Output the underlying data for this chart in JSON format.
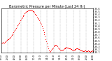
{
  "title": "Barometric Pressure per Minute (Last 24 Hr)",
  "bg_color": "#ffffff",
  "plot_bg_color": "#ffffff",
  "line_color": "#ff0000",
  "grid_color": "#aaaaaa",
  "title_color": "#000000",
  "tick_color": "#000000",
  "ylim": [
    29.1,
    30.6
  ],
  "yticks": [
    29.1,
    29.2,
    29.3,
    29.4,
    29.5,
    29.6,
    29.7,
    29.8,
    29.9,
    30.0,
    30.1,
    30.2,
    30.3,
    30.4,
    30.5,
    30.6
  ],
  "ytick_labels": [
    "29.1",
    "29.2",
    "29.3",
    "29.4",
    "29.5",
    "29.6",
    "29.7",
    "29.8",
    "29.9",
    "30.0",
    "30.1",
    "30.2",
    "30.3",
    "30.4",
    "30.5",
    "30.6"
  ],
  "x_data": [
    0,
    1,
    2,
    3,
    4,
    5,
    6,
    7,
    8,
    9,
    10,
    11,
    12,
    13,
    14,
    15,
    16,
    17,
    18,
    19,
    20,
    21,
    22,
    23,
    24,
    25,
    26,
    27,
    28,
    29,
    30,
    31,
    32,
    33,
    34,
    35,
    36,
    37,
    38,
    39,
    40,
    41,
    42,
    43,
    44,
    45,
    46,
    47,
    48,
    49,
    50,
    51,
    52,
    53,
    54,
    55,
    56,
    57,
    58,
    59,
    60,
    61,
    62,
    63,
    64,
    65,
    66,
    67,
    68,
    69,
    70,
    71,
    72,
    73,
    74,
    75,
    76,
    77,
    78,
    79,
    80,
    81,
    82,
    83,
    84,
    85,
    86,
    87,
    88,
    89,
    90,
    91,
    92,
    93,
    94,
    95,
    96,
    97,
    98,
    99,
    100,
    101,
    102,
    103,
    104,
    105,
    106,
    107,
    108,
    109,
    110,
    111,
    112,
    113,
    114,
    115,
    116,
    117,
    118,
    119,
    120,
    121,
    122,
    123,
    124,
    125,
    126,
    127,
    128,
    129,
    130,
    131,
    132,
    133,
    134,
    135,
    136,
    137,
    138,
    139,
    140
  ],
  "y_data": [
    29.42,
    29.43,
    29.44,
    29.45,
    29.43,
    29.44,
    29.46,
    29.47,
    29.5,
    29.52,
    29.54,
    29.56,
    29.58,
    29.6,
    29.63,
    29.66,
    29.69,
    29.72,
    29.75,
    29.78,
    29.82,
    29.86,
    29.9,
    29.94,
    29.98,
    30.02,
    30.06,
    30.1,
    30.15,
    30.19,
    30.23,
    30.27,
    30.3,
    30.34,
    30.37,
    30.4,
    30.43,
    30.45,
    30.48,
    30.5,
    30.52,
    30.53,
    30.54,
    30.55,
    30.56,
    30.55,
    30.54,
    30.53,
    30.52,
    30.5,
    30.48,
    30.45,
    30.42,
    30.39,
    30.36,
    30.32,
    30.28,
    30.24,
    30.2,
    30.16,
    30.11,
    30.06,
    30.0,
    29.94,
    29.87,
    29.8,
    29.72,
    29.64,
    29.56,
    29.48,
    29.4,
    29.32,
    29.24,
    29.16,
    29.12,
    29.15,
    29.18,
    29.21,
    29.24,
    29.27,
    29.3,
    29.33,
    29.35,
    29.36,
    29.35,
    29.33,
    29.3,
    29.27,
    29.25,
    29.22,
    29.2,
    29.18,
    29.17,
    29.18,
    29.19,
    29.21,
    29.23,
    29.25,
    29.26,
    29.27,
    29.28,
    29.27,
    29.26,
    29.25,
    29.24,
    29.23,
    29.22,
    29.21,
    29.2,
    29.19,
    29.18,
    29.19,
    29.2,
    29.21,
    29.22,
    29.23,
    29.24,
    29.23,
    29.22,
    29.21,
    29.2,
    29.18,
    29.17,
    29.16,
    29.15,
    29.14,
    29.15,
    29.16,
    29.17,
    29.16,
    29.15,
    29.14,
    29.15,
    29.16,
    29.15,
    29.14,
    29.13,
    29.14,
    29.15,
    29.16,
    29.15
  ],
  "xtick_positions": [
    0,
    10,
    20,
    30,
    40,
    50,
    60,
    70,
    80,
    90,
    100,
    110,
    120,
    130,
    140
  ],
  "xtick_labels": [
    "0:00",
    "2:00",
    "4:00",
    "6:00",
    "8:00",
    "10:0",
    "12:0",
    "14:0",
    "16:0",
    "18:0",
    "20:0",
    "22:0",
    "0:00",
    "2:00",
    "4:00"
  ],
  "marker_size": 0.8,
  "title_fontsize": 3.5,
  "tick_fontsize": 2.5
}
